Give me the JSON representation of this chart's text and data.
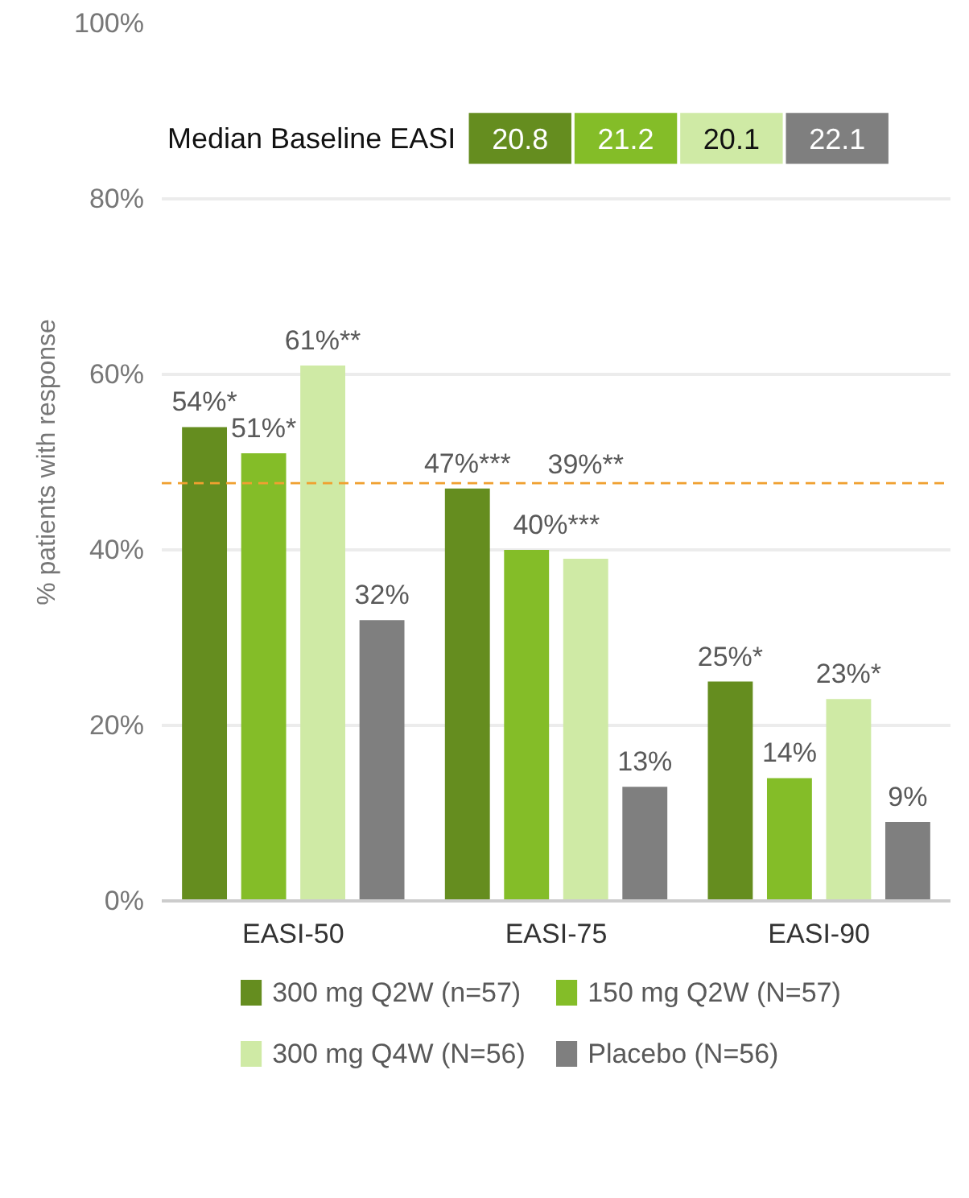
{
  "chart_data": {
    "type": "bar",
    "ylabel": "% patients with response",
    "categories": [
      "EASI-50",
      "EASI-75",
      "EASI-90"
    ],
    "series": [
      {
        "name": "300 mg Q2W (n=57)",
        "color": "#658d1f",
        "values": [
          54,
          47,
          25
        ],
        "value_labels": [
          "54%*",
          "47%***",
          "25%*"
        ]
      },
      {
        "name": "150 mg Q2W (N=57)",
        "color": "#84bd28",
        "values": [
          51,
          40,
          14
        ],
        "value_labels": [
          "51%*",
          "40%***",
          "14%"
        ]
      },
      {
        "name": "300 mg Q4W (N=56)",
        "color": "#cfeaa5",
        "values": [
          61,
          39,
          23
        ],
        "value_labels": [
          "61%**",
          "39%**",
          "23%*"
        ]
      },
      {
        "name": "Placebo (N=56)",
        "color": "#7f7f7f",
        "values": [
          32,
          13,
          9
        ],
        "value_labels": [
          "32%",
          "13%",
          "9%"
        ]
      }
    ],
    "ylim": [
      0,
      100
    ],
    "yticks": [
      {
        "value": 0,
        "label": "0%"
      },
      {
        "value": 20,
        "label": "20%"
      },
      {
        "value": 40,
        "label": "40%"
      },
      {
        "value": 60,
        "label": "60%"
      },
      {
        "value": 80,
        "label": "80%"
      },
      {
        "value": 100,
        "label": "100%"
      }
    ],
    "grid": "y",
    "legend": "bottom",
    "ref_lines": [
      {
        "axis": "y",
        "value": 47.6,
        "color": "#f0a030",
        "line_style": "dashed"
      }
    ],
    "annotations": [
      "Median Baseline EASI",
      "20.8",
      "21.2",
      "20.1",
      "22.1"
    ]
  }
}
